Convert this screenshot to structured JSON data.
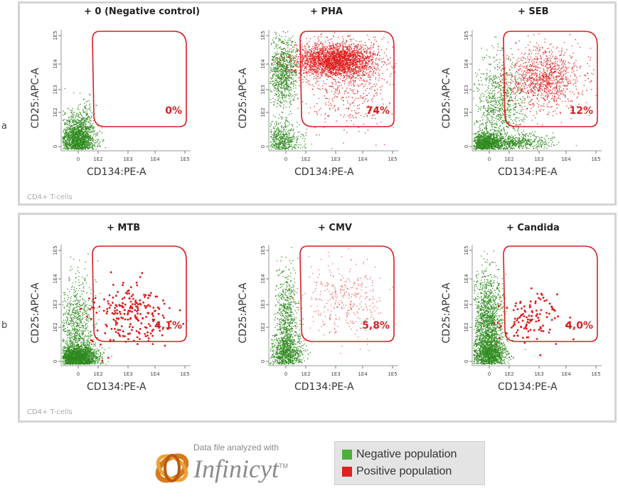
{
  "rows": [
    {
      "label": "a",
      "cells_label": "CD4+ T-cells",
      "panels": [
        {
          "title": "+ 0 (Negative control)",
          "percent": "0%"
        },
        {
          "title": "+ PHA",
          "percent": "74%"
        },
        {
          "title": "+ SEB",
          "percent": "12%"
        }
      ]
    },
    {
      "label": "b",
      "cells_label": "CD4+ T-cells",
      "panels": [
        {
          "title": "+ MTB",
          "percent": "4,1%"
        },
        {
          "title": "+ CMV",
          "percent": "5,8%"
        },
        {
          "title": "+ Candida",
          "percent": "4,0%"
        }
      ]
    }
  ],
  "axes": {
    "xlabel": "CD134:PE-A",
    "ylabel": "CD25:APC-A",
    "xticks": [
      "0",
      "1E2",
      "1E3",
      "1E4",
      "1E5"
    ],
    "yticks": [
      "0",
      "1E2",
      "1E3",
      "1E4",
      "1E5"
    ]
  },
  "legend": {
    "items": [
      {
        "label": "Negative population",
        "color": "#4caf3a"
      },
      {
        "label": "Positive population",
        "color": "#e02020"
      }
    ]
  },
  "logo": {
    "caption": "Data file analyzed with",
    "name": "Infinicyt",
    "trademark": "TM"
  },
  "colors": {
    "negative": "#2e8b1e",
    "positive": "#e01818",
    "gate": "#d42020"
  },
  "chart_data": [
    {
      "type": "scatter",
      "title": "+ 0 (Negative control)",
      "xlabel": "CD134:PE-A",
      "ylabel": "CD25:APC-A",
      "xscale": "log",
      "yscale": "log",
      "gate_percent": 0,
      "series": [
        {
          "name": "Negative population",
          "density": "one population near origin"
        }
      ]
    },
    {
      "type": "scatter",
      "title": "+ PHA",
      "xlabel": "CD134:PE-A",
      "ylabel": "CD25:APC-A",
      "xscale": "log",
      "yscale": "log",
      "gate_percent": 74
    },
    {
      "type": "scatter",
      "title": "+ SEB",
      "xlabel": "CD134:PE-A",
      "ylabel": "CD25:APC-A",
      "xscale": "log",
      "yscale": "log",
      "gate_percent": 12
    },
    {
      "type": "scatter",
      "title": "+ MTB",
      "xlabel": "CD134:PE-A",
      "ylabel": "CD25:APC-A",
      "xscale": "log",
      "yscale": "log",
      "gate_percent": 4.1
    },
    {
      "type": "scatter",
      "title": "+ CMV",
      "xlabel": "CD134:PE-A",
      "ylabel": "CD25:APC-A",
      "xscale": "log",
      "yscale": "log",
      "gate_percent": 5.8
    },
    {
      "type": "scatter",
      "title": "+ Candida",
      "xlabel": "CD134:PE-A",
      "ylabel": "CD25:APC-A",
      "xscale": "log",
      "yscale": "log",
      "gate_percent": 4.0
    }
  ]
}
